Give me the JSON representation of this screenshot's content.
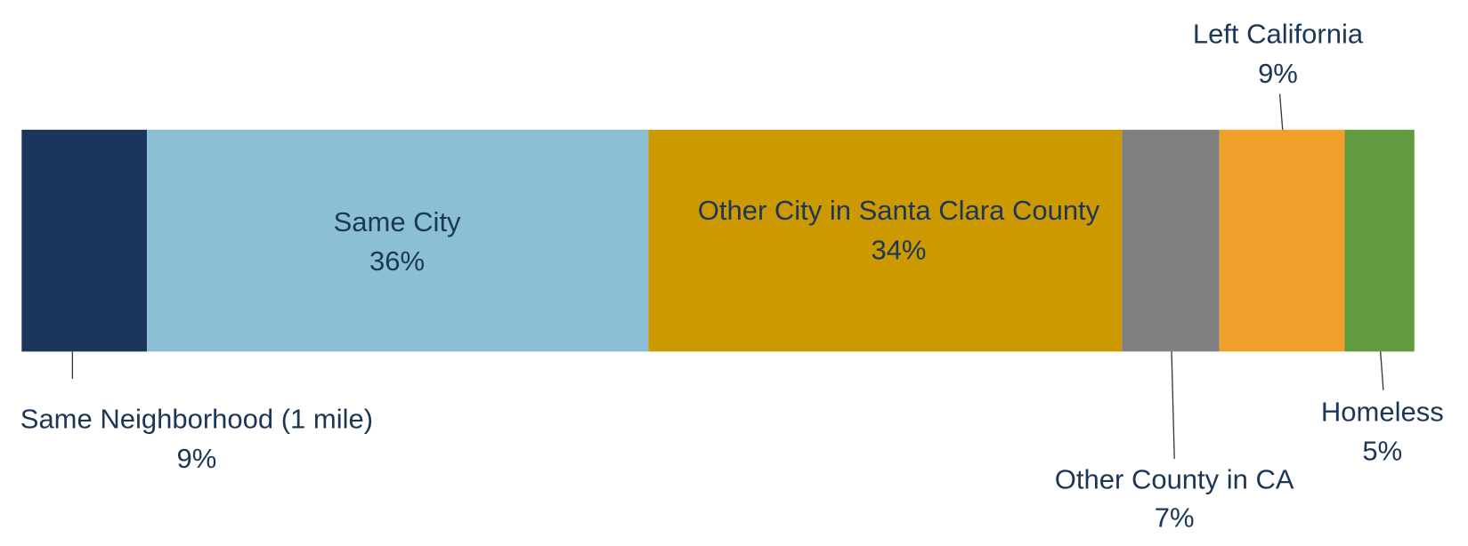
{
  "chart_data": {
    "type": "bar",
    "orientation": "horizontal",
    "stacked": true,
    "series": [
      {
        "name": "Same Neighborhood (1 mile)",
        "color": "#1a365d",
        "values": [
          9
        ],
        "value_labels": [
          "9%"
        ]
      },
      {
        "name": "Same City",
        "color": "#8bc0d4",
        "values": [
          36
        ],
        "value_labels": [
          "36%"
        ]
      },
      {
        "name": "Other City in Santa Clara County",
        "color": "#cc9a00",
        "values": [
          34
        ],
        "value_labels": [
          "34%"
        ]
      },
      {
        "name": "Other County in CA",
        "color": "#808080",
        "values": [
          7
        ],
        "value_labels": [
          "7%"
        ]
      },
      {
        "name": "Left California",
        "color": "#f0a02a",
        "values": [
          9
        ],
        "value_labels": [
          "9%"
        ]
      },
      {
        "name": "Homeless",
        "color": "#629a3f",
        "values": [
          5
        ],
        "value_labels": [
          "5%"
        ]
      }
    ]
  }
}
